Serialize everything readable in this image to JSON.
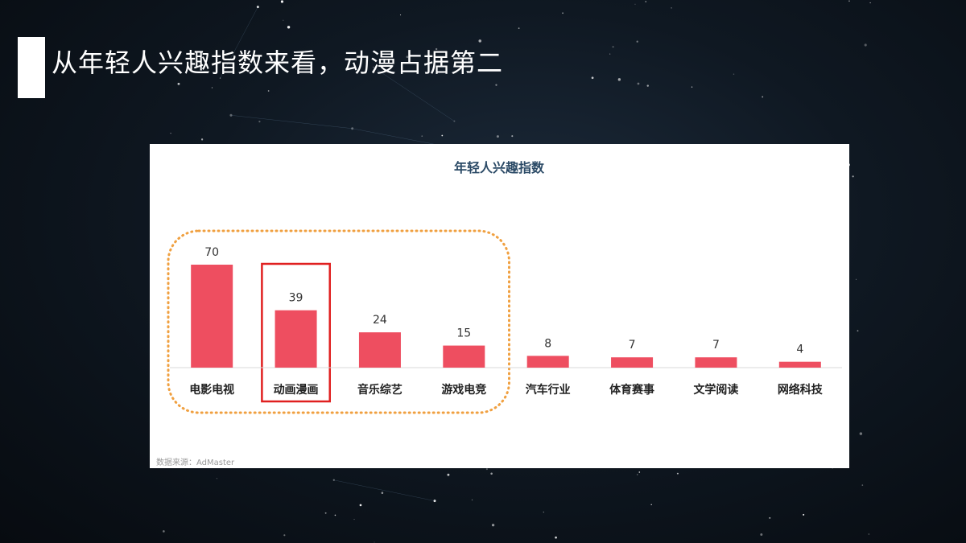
{
  "slide": {
    "title": "从年轻人兴趣指数来看，动漫占据第二"
  },
  "colors": {
    "bar": "#ee4e60",
    "highlight_box": "#e02020",
    "group_outline": "#f0a040",
    "title_text": "#2b4a66"
  },
  "chart_data": {
    "type": "bar",
    "title": "年轻人兴趣指数",
    "categories": [
      "电影电视",
      "动画漫画",
      "音乐综艺",
      "游戏电竞",
      "汽车行业",
      "体育赛事",
      "文学阅读",
      "网络科技"
    ],
    "values": [
      70,
      39,
      24,
      15,
      8,
      7,
      7,
      4
    ],
    "ylim": [
      0,
      70
    ],
    "grid": false,
    "data_labels": true,
    "highlight_category": "动画漫画",
    "grouped_categories": [
      "电影电视",
      "动画漫画",
      "音乐综艺",
      "游戏电竞"
    ]
  },
  "source": "数据来源：AdMaster"
}
